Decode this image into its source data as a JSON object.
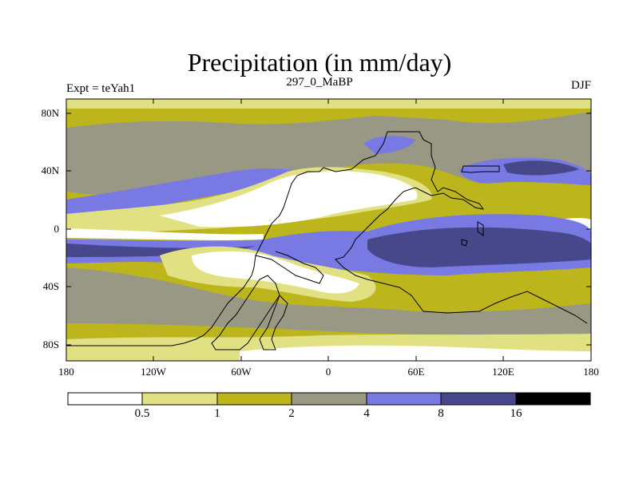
{
  "title": "Precipitation (in mm/day)",
  "subtitle_left": "Expt = teYah1",
  "subtitle_center": "297_0_MaBP",
  "subtitle_right": "DJF",
  "map": {
    "lat_ticks": [
      "80N",
      "40N",
      "0",
      "40S",
      "80S"
    ],
    "lat_values": [
      80,
      40,
      0,
      -40,
      -80
    ],
    "lon_ticks": [
      "180",
      "120W",
      "60W",
      "0",
      "60E",
      "120E",
      "180"
    ],
    "lon_values": [
      -180,
      -120,
      -60,
      0,
      60,
      120,
      180
    ]
  },
  "colorbar": {
    "labels": [
      "0.5",
      "1",
      "2",
      "4",
      "8",
      "16"
    ],
    "levels": [
      0.5,
      1,
      2,
      4,
      8,
      16
    ],
    "colors": [
      "#ffffff",
      "#e1e083",
      "#bcb51c",
      "#999884",
      "#7879e3",
      "#47488b",
      "#000000"
    ]
  }
}
